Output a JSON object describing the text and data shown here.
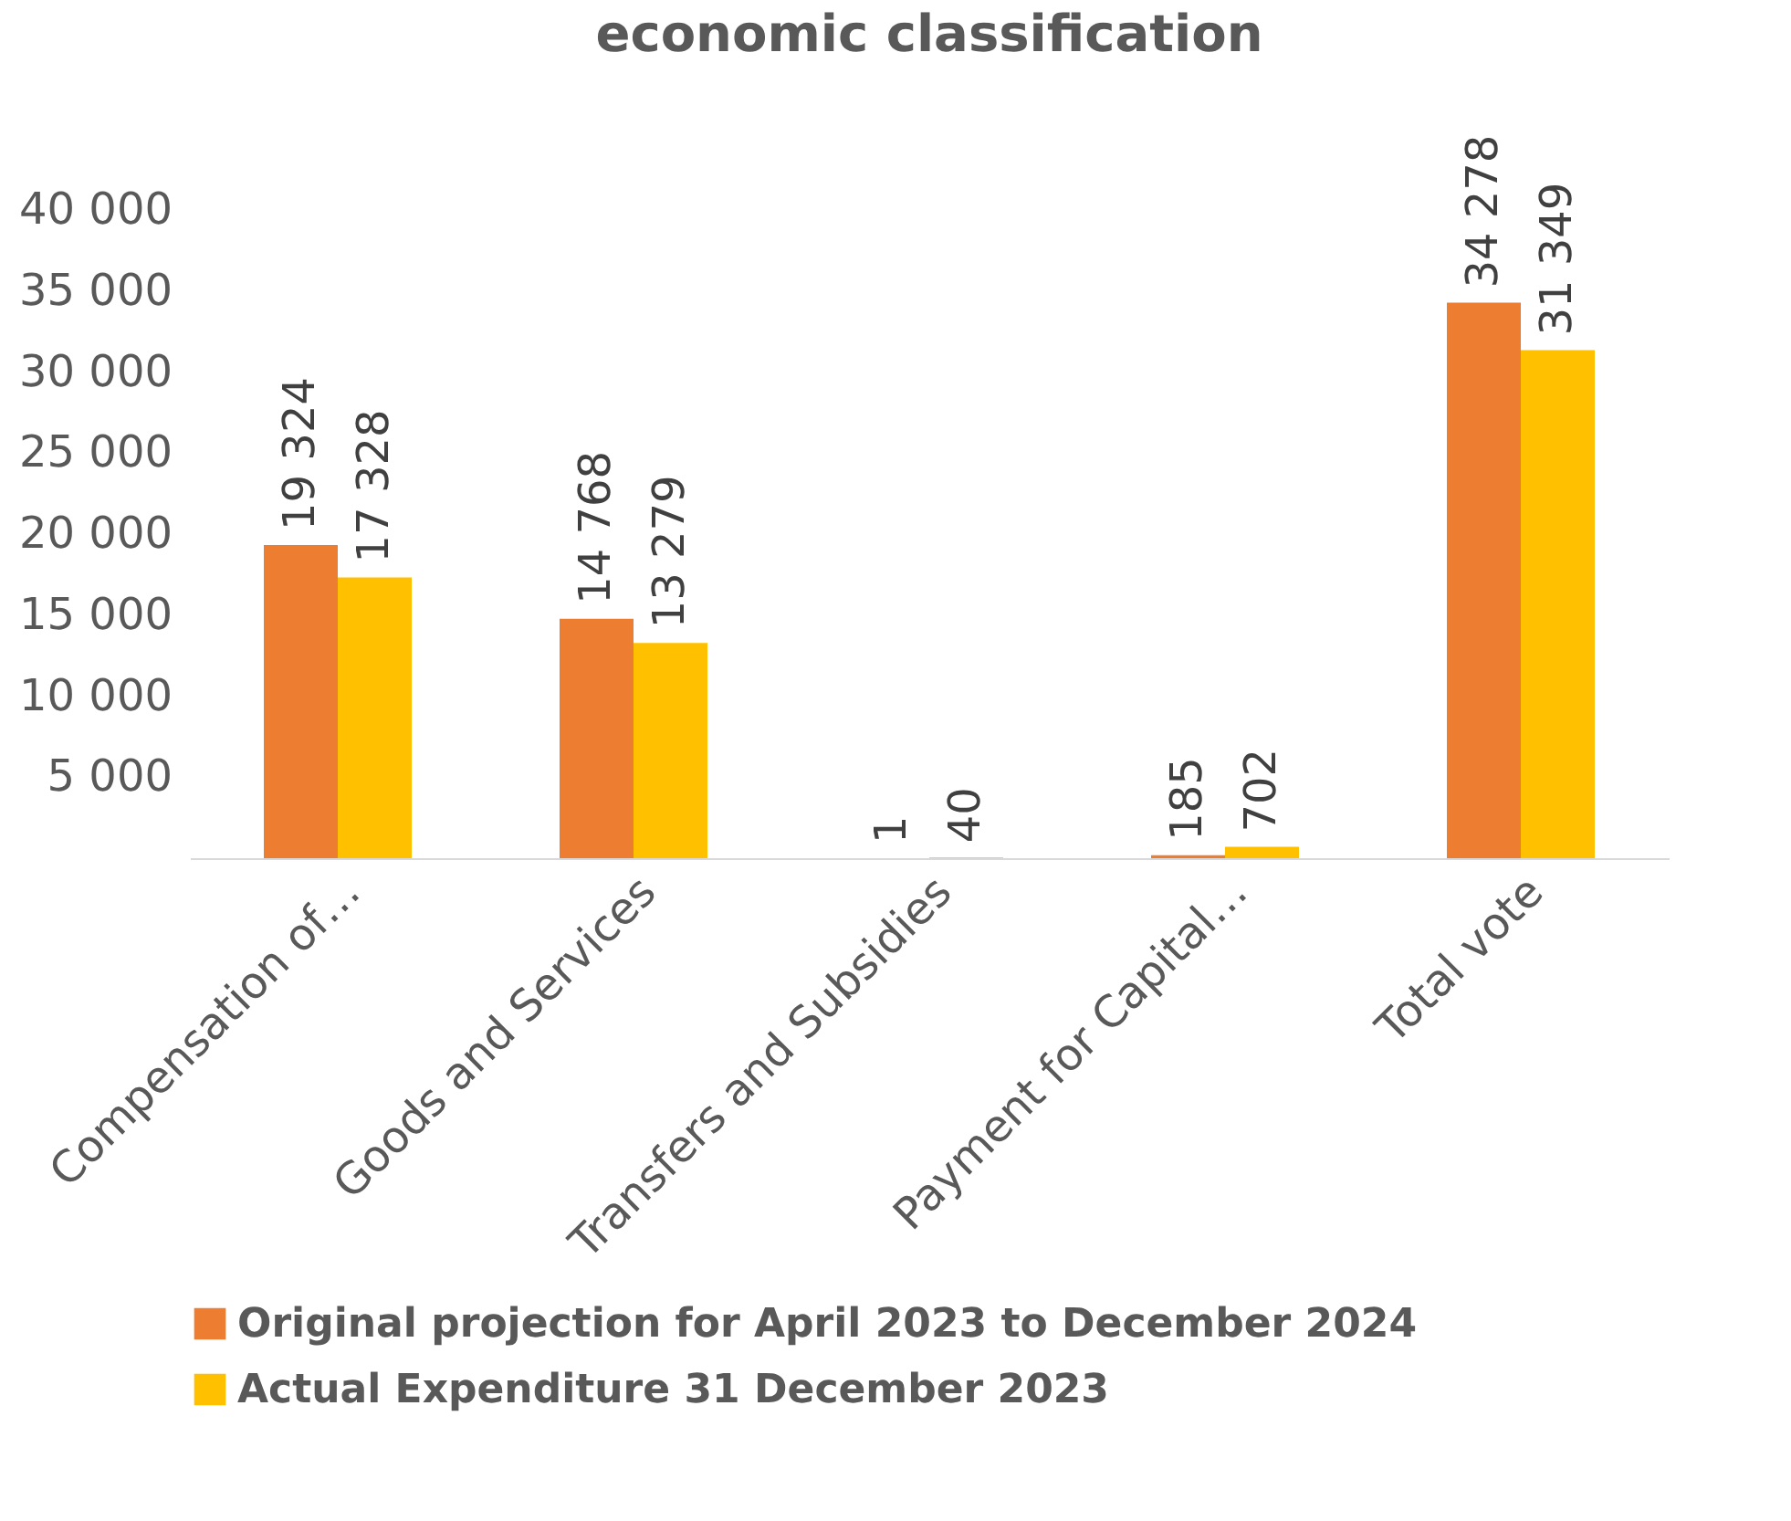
{
  "chart_data": {
    "type": "bar",
    "title": "economic classification",
    "categories": [
      "Compensation of…",
      "Goods and Services",
      "Transfers and Subsidies",
      "Payment for Capital…",
      "Total vote"
    ],
    "series": [
      {
        "name": "Original projection for April 2023 to December 2024",
        "color": "#ed7d31",
        "values": [
          19324,
          14768,
          1,
          185,
          34278
        ],
        "value_labels": [
          "19 324",
          "14 768",
          "1",
          "185",
          "34 278"
        ]
      },
      {
        "name": "Actual Expenditure 31 December 2023",
        "color": "#ffc000",
        "values": [
          17328,
          13279,
          40,
          702,
          31349
        ],
        "value_labels": [
          "17 328",
          "13 279",
          "40",
          "702",
          "31 349"
        ]
      }
    ],
    "ylim": [
      0,
      40000
    ],
    "yticks": [
      {
        "value": 0,
        "label": null
      },
      {
        "value": 5000,
        "label": "5 000"
      },
      {
        "value": 10000,
        "label": "10 000"
      },
      {
        "value": 15000,
        "label": "15 000"
      },
      {
        "value": 20000,
        "label": "20 000"
      },
      {
        "value": 25000,
        "label": "25 000"
      },
      {
        "value": 30000,
        "label": "30 000"
      },
      {
        "value": 35000,
        "label": "35 000"
      },
      {
        "value": 40000,
        "label": "40 000"
      }
    ],
    "grid": false,
    "legend": "bottom"
  }
}
